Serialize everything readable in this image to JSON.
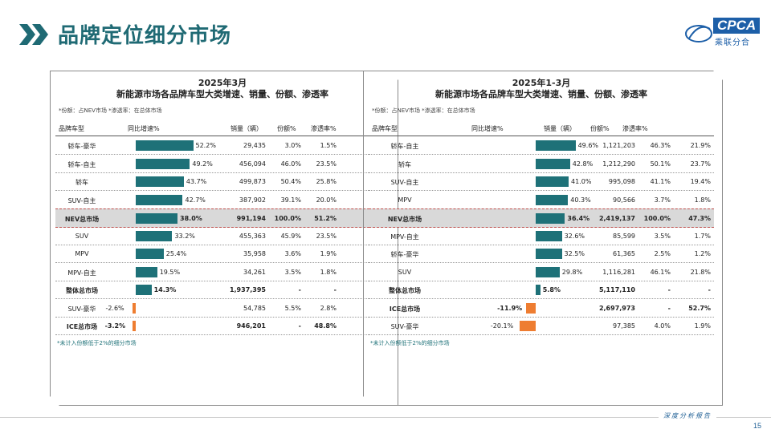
{
  "page": {
    "title": "品牌定位细分市场",
    "page_number": "15",
    "footer": "深度分析报告"
  },
  "logo": {
    "name": "CPCA",
    "sub": "乘联分合"
  },
  "left": {
    "title1": "2025年3月",
    "title2": "新能源市场各品牌车型大类增速、销量、份额、渗透率",
    "note": "*份额：占NEV市场  *渗透率：在总体市场",
    "headers": [
      "品牌车型",
      "同比增速%",
      "销量（辆）",
      "份额%",
      "渗透率%"
    ],
    "rows": [
      {
        "cat": "轿车-豪华",
        "growth": 52.2,
        "growth_label": "52.2%",
        "sales": "29,435",
        "share": "3.0%",
        "pen": "1.5%"
      },
      {
        "cat": "轿车-自主",
        "growth": 49.2,
        "growth_label": "49.2%",
        "sales": "456,094",
        "share": "46.0%",
        "pen": "23.5%"
      },
      {
        "cat": "轿车",
        "growth": 43.7,
        "growth_label": "43.7%",
        "sales": "499,873",
        "share": "50.4%",
        "pen": "25.8%"
      },
      {
        "cat": "SUV-自主",
        "growth": 42.7,
        "growth_label": "42.7%",
        "sales": "387,902",
        "share": "39.1%",
        "pen": "20.0%"
      },
      {
        "cat": "NEV总市场",
        "growth": 38.0,
        "growth_label": "38.0%",
        "sales": "991,194",
        "share": "100.0%",
        "pen": "51.2%",
        "hl": true
      },
      {
        "cat": "SUV",
        "growth": 33.2,
        "growth_label": "33.2%",
        "sales": "455,363",
        "share": "45.9%",
        "pen": "23.5%"
      },
      {
        "cat": "MPV",
        "growth": 25.4,
        "growth_label": "25.4%",
        "sales": "35,958",
        "share": "3.6%",
        "pen": "1.9%"
      },
      {
        "cat": "MPV-自主",
        "growth": 19.5,
        "growth_label": "19.5%",
        "sales": "34,261",
        "share": "3.5%",
        "pen": "1.8%"
      },
      {
        "cat": "整体总市场",
        "growth": 14.3,
        "growth_label": "14.3%",
        "sales": "1,937,395",
        "share": "-",
        "pen": "-",
        "bold": true
      },
      {
        "cat": "SUV-豪华",
        "growth": -2.6,
        "growth_label": "-2.6%",
        "sales": "54,785",
        "share": "5.5%",
        "pen": "2.8%"
      },
      {
        "cat": "ICE总市场",
        "growth": -3.2,
        "growth_label": "-3.2%",
        "sales": "946,201",
        "share": "-",
        "pen": "48.8%",
        "bold": true
      }
    ],
    "footnote": "*未计入份额低于2%的细分市场"
  },
  "right": {
    "title1": "2025年1-3月",
    "title2": "新能源市场各品牌车型大类增速、销量、份额、渗透率",
    "note": "*份额：占NEV市场  *渗透率：在总体市场",
    "headers": [
      "品牌车型",
      "同比增速%",
      "销量（辆）",
      "份额%",
      "渗透率%"
    ],
    "rows": [
      {
        "cat": "轿车-自主",
        "growth": 49.6,
        "growth_label": "49.6%",
        "sales": "1,121,203",
        "share": "46.3%",
        "pen": "21.9%"
      },
      {
        "cat": "轿车",
        "growth": 42.8,
        "growth_label": "42.8%",
        "sales": "1,212,290",
        "share": "50.1%",
        "pen": "23.7%"
      },
      {
        "cat": "SUV-自主",
        "growth": 41.0,
        "growth_label": "41.0%",
        "sales": "995,098",
        "share": "41.1%",
        "pen": "19.4%"
      },
      {
        "cat": "MPV",
        "growth": 40.3,
        "growth_label": "40.3%",
        "sales": "90,566",
        "share": "3.7%",
        "pen": "1.8%"
      },
      {
        "cat": "NEV总市场",
        "growth": 36.4,
        "growth_label": "36.4%",
        "sales": "2,419,137",
        "share": "100.0%",
        "pen": "47.3%",
        "hl": true
      },
      {
        "cat": "MPV-自主",
        "growth": 32.6,
        "growth_label": "32.6%",
        "sales": "85,599",
        "share": "3.5%",
        "pen": "1.7%"
      },
      {
        "cat": "轿车-豪华",
        "growth": 32.5,
        "growth_label": "32.5%",
        "sales": "61,365",
        "share": "2.5%",
        "pen": "1.2%"
      },
      {
        "cat": "SUV",
        "growth": 29.8,
        "growth_label": "29.8%",
        "sales": "1,116,281",
        "share": "46.1%",
        "pen": "21.8%"
      },
      {
        "cat": "整体总市场",
        "growth": 5.8,
        "growth_label": "5.8%",
        "sales": "5,117,110",
        "share": "-",
        "pen": "-",
        "bold": true
      },
      {
        "cat": "ICE总市场",
        "growth": -11.9,
        "growth_label": "-11.9%",
        "sales": "2,697,973",
        "share": "-",
        "pen": "52.7%",
        "bold": true
      },
      {
        "cat": "SUV-豪华",
        "growth": -20.1,
        "growth_label": "-20.1%",
        "sales": "97,385",
        "share": "4.0%",
        "pen": "1.9%"
      }
    ],
    "footnote": "*未计入份额低于2%的细分市场"
  },
  "colors": {
    "accent": "#1e7178",
    "positive_bar": "#1e7178",
    "negative_bar": "#ee7d31",
    "title": "#1f6a74",
    "highlight_row": "#d9d9d9"
  },
  "chart_data": [
    {
      "type": "bar",
      "title": "2025年3月 新能源市场各品牌车型大类增速、销量、份额、渗透率",
      "categories": [
        "轿车-豪华",
        "轿车-自主",
        "轿车",
        "SUV-自主",
        "NEV总市场",
        "SUV",
        "MPV",
        "MPV-自主",
        "整体总市场",
        "SUV-豪华",
        "ICE总市场"
      ],
      "series": [
        {
          "name": "同比增速%",
          "values": [
            52.2,
            49.2,
            43.7,
            42.7,
            38.0,
            33.2,
            25.4,
            19.5,
            14.3,
            -2.6,
            -3.2
          ]
        }
      ]
    },
    {
      "type": "bar",
      "title": "2025年1-3月 新能源市场各品牌车型大类增速、销量、份额、渗透率",
      "categories": [
        "轿车-自主",
        "轿车",
        "SUV-自主",
        "MPV",
        "NEV总市场",
        "MPV-自主",
        "轿车-豪华",
        "SUV",
        "整体总市场",
        "ICE总市场",
        "SUV-豪华"
      ],
      "series": [
        {
          "name": "同比增速%",
          "values": [
            49.6,
            42.8,
            41.0,
            40.3,
            36.4,
            32.6,
            32.5,
            29.8,
            5.8,
            -11.9,
            -20.1
          ]
        }
      ]
    }
  ]
}
